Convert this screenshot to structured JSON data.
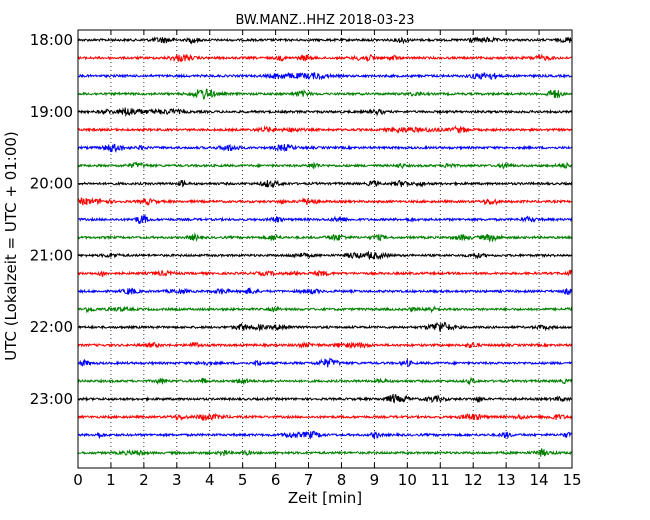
{
  "chart_data": {
    "type": "line",
    "title": "BW.MANZ..HHZ 2018-03-23",
    "xlabel": "Zeit  [min]",
    "ylabel": "UTC (Lokalzeit = UTC + 01:00)",
    "xlim": [
      0,
      15
    ],
    "x_ticks": [
      "0",
      "1",
      "2",
      "3",
      "4",
      "5",
      "6",
      "7",
      "8",
      "9",
      "10",
      "11",
      "12",
      "13",
      "14",
      "15"
    ],
    "y_tick_labels": [
      "18:00",
      "19:00",
      "20:00",
      "21:00",
      "22:00",
      "23:00"
    ],
    "grid": "vertical dotted lines at each minute",
    "trace_interval_minutes": 15,
    "trace_colors": [
      "#000000",
      "#ff0000",
      "#0000ff",
      "#008000"
    ],
    "traces": [
      {
        "start": "18:00",
        "color": "#000000"
      },
      {
        "start": "18:15",
        "color": "#ff0000"
      },
      {
        "start": "18:30",
        "color": "#0000ff"
      },
      {
        "start": "18:45",
        "color": "#008000"
      },
      {
        "start": "19:00",
        "color": "#000000"
      },
      {
        "start": "19:15",
        "color": "#ff0000"
      },
      {
        "start": "19:30",
        "color": "#0000ff"
      },
      {
        "start": "19:45",
        "color": "#008000"
      },
      {
        "start": "20:00",
        "color": "#000000"
      },
      {
        "start": "20:15",
        "color": "#ff0000"
      },
      {
        "start": "20:30",
        "color": "#0000ff"
      },
      {
        "start": "20:45",
        "color": "#008000"
      },
      {
        "start": "21:00",
        "color": "#000000"
      },
      {
        "start": "21:15",
        "color": "#ff0000"
      },
      {
        "start": "21:30",
        "color": "#0000ff"
      },
      {
        "start": "21:45",
        "color": "#008000"
      },
      {
        "start": "22:00",
        "color": "#000000"
      },
      {
        "start": "22:15",
        "color": "#ff0000"
      },
      {
        "start": "22:30",
        "color": "#0000ff"
      },
      {
        "start": "22:45",
        "color": "#008000"
      },
      {
        "start": "23:00",
        "color": "#000000"
      },
      {
        "start": "23:15",
        "color": "#ff0000"
      },
      {
        "start": "23:30",
        "color": "#0000ff"
      },
      {
        "start": "23:45",
        "color": "#008000"
      }
    ]
  }
}
